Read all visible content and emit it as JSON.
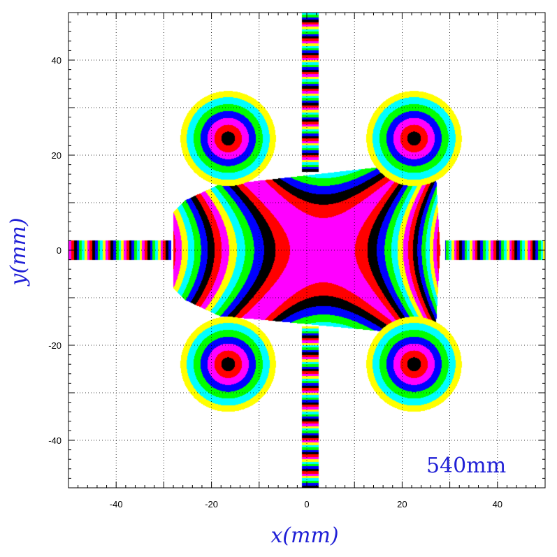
{
  "chart_data": {
    "type": "heatmap",
    "title": "",
    "xlabel": "x(mm)",
    "ylabel": "y(mm)",
    "annotation": "540mm",
    "xlim": [
      -50,
      50
    ],
    "ylim": [
      -50,
      50
    ],
    "x_ticks": [
      -40,
      -20,
      0,
      20,
      40
    ],
    "y_ticks": [
      -40,
      -20,
      0,
      20,
      40
    ],
    "grid": true,
    "palette": [
      "#ff00ff",
      "#ff0000",
      "#000000",
      "#0000ff",
      "#00ff00",
      "#00ffff",
      "#ffff00"
    ],
    "regions": {
      "discs": [
        {
          "cx": -16.5,
          "cy": 23.5,
          "r": 10
        },
        {
          "cx": 22.5,
          "cy": 23.5,
          "r": 10
        },
        {
          "cx": -16.5,
          "cy": -24,
          "r": 10
        },
        {
          "cx": 22.5,
          "cy": -24,
          "r": 10
        }
      ],
      "vertical_strips": [
        {
          "x": [
            -1,
            2.5
          ],
          "y": [
            16.5,
            50
          ]
        },
        {
          "x": [
            -1,
            2.5
          ],
          "y": [
            -50,
            -16
          ]
        }
      ],
      "horizontal_strips": [
        {
          "x": [
            -50,
            -28.5
          ],
          "y": [
            -2,
            2
          ]
        },
        {
          "x": [
            29,
            50
          ],
          "y": [
            -2,
            2
          ]
        }
      ],
      "central_polygon": [
        [
          -28,
          8
        ],
        [
          -25.5,
          10.5
        ],
        [
          -18,
          14
        ],
        [
          -11,
          14.5
        ],
        [
          18,
          17.8
        ],
        [
          27,
          17.8
        ],
        [
          28,
          0
        ],
        [
          27,
          -18
        ],
        [
          18,
          -17.3
        ],
        [
          -11,
          -14.5
        ],
        [
          -18,
          -14
        ],
        [
          -25.5,
          -10.5
        ],
        [
          -28,
          -8
        ],
        [
          -28,
          0
        ]
      ]
    }
  }
}
